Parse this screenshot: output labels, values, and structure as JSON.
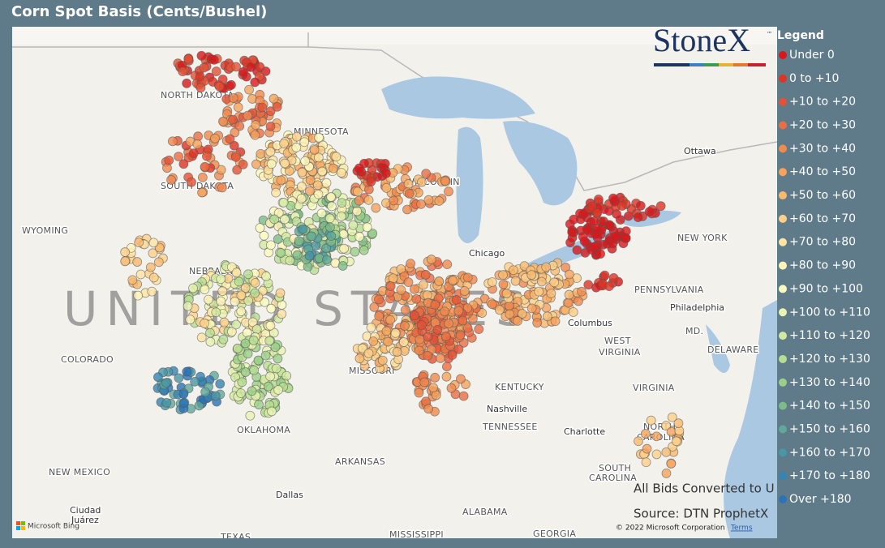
{
  "header": {
    "title": "Corn Spot Basis (Cents/Bushel)"
  },
  "legend": {
    "title": "Legend",
    "items": [
      {
        "label": "Under 0",
        "color": "#d7191c"
      },
      {
        "label": "0 to +10",
        "color": "#dc3526"
      },
      {
        "label": "+10 to +20",
        "color": "#e35236"
      },
      {
        "label": "+20 to +30",
        "color": "#ea6e44"
      },
      {
        "label": "+30 to +40",
        "color": "#f08a4f"
      },
      {
        "label": "+40 to +50",
        "color": "#f5a35d"
      },
      {
        "label": "+50 to +60",
        "color": "#f9ba70"
      },
      {
        "label": "+60 to +70",
        "color": "#fcd08a"
      },
      {
        "label": "+70 to +80",
        "color": "#fee3a3"
      },
      {
        "label": "+80 to +90",
        "color": "#fff3b8"
      },
      {
        "label": "+90 to +100",
        "color": "#fbfbbf"
      },
      {
        "label": "+100 to +110",
        "color": "#e9f4b0"
      },
      {
        "label": "+110 to +120",
        "color": "#d2eaa0"
      },
      {
        "label": "+120 to +130",
        "color": "#b7dd92"
      },
      {
        "label": "+130 to +140",
        "color": "#9bcf89"
      },
      {
        "label": "+140 to +150",
        "color": "#7dbc88"
      },
      {
        "label": "+150 to +160",
        "color": "#5fa89a"
      },
      {
        "label": "+160 to +170",
        "color": "#4896a6"
      },
      {
        "label": "+170 to +180",
        "color": "#3584b3"
      },
      {
        "label": "Over +180",
        "color": "#2b73b6"
      }
    ]
  },
  "logo": {
    "text": "StoneX",
    "mark": "™"
  },
  "map_labels": [
    {
      "text": "NORTH DAKOTA"
    },
    {
      "text": "MINNESOTA"
    },
    {
      "text": "SOUTH DAKOTA"
    },
    {
      "text": "WYOMING"
    },
    {
      "text": "NEBRASKA"
    },
    {
      "text": "COLORADO"
    },
    {
      "text": "MISSOURI"
    },
    {
      "text": "KENTUCKY"
    },
    {
      "text": "OKLAHOMA"
    },
    {
      "text": "ARKANSAS"
    },
    {
      "text": "NEW MEXICO"
    },
    {
      "text": "TENNESSEE"
    },
    {
      "text": "ALABAMA"
    },
    {
      "text": "MISSISSIPPI"
    },
    {
      "text": "GEORGIA"
    },
    {
      "text": "TEXAS"
    },
    {
      "text": "NEW YORK"
    },
    {
      "text": "PENNSYLVANIA"
    },
    {
      "text": "MD."
    },
    {
      "text": "DELAWARE"
    },
    {
      "text": "WEST"
    },
    {
      "text": "VIRGINIA"
    },
    {
      "text": "VIRGINIA"
    },
    {
      "text": "NORTH"
    },
    {
      "text": "CAROLINA"
    },
    {
      "text": "SOUTH"
    },
    {
      "text": "CAROLINA"
    },
    {
      "text": "WISCONSIN"
    }
  ],
  "cities": [
    {
      "text": "Chicago"
    },
    {
      "text": "Ottawa"
    },
    {
      "text": "Philadelphia"
    },
    {
      "text": "Columbus"
    },
    {
      "text": "Nashville"
    },
    {
      "text": "Charlotte"
    },
    {
      "text": "Dallas"
    },
    {
      "text": "Ciudad"
    },
    {
      "text": "Juárez"
    }
  ],
  "country": "UNITED STATES",
  "notes": {
    "conversion": "All Bids Converted to U",
    "source": "Source: DTN ProphetX"
  },
  "attribution": {
    "copyright": "© 2022 Microsoft Corporation",
    "terms": "Terms",
    "provider": "Microsoft Bing"
  }
}
